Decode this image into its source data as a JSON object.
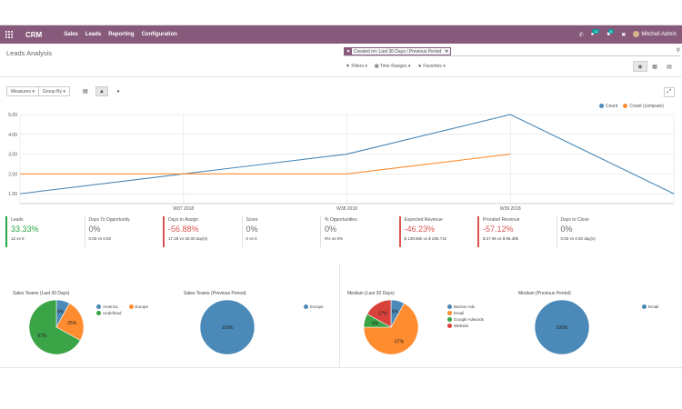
{
  "navbar": {
    "brand": "CRM",
    "menus": [
      "Sales",
      "Leads",
      "Reporting",
      "Configuration"
    ],
    "messages_badge": "11",
    "activities_badge": "6",
    "user": "Mitchell Admin",
    "color": "#875a7b"
  },
  "control_panel": {
    "title": "Leads Analysis",
    "facet": "Created on: Last 30 Days / Previous Period",
    "filters_label": "Filters",
    "time_ranges_label": "Time Ranges",
    "favorites_label": "Favorites"
  },
  "graph_toolbar": {
    "measures_label": "Measures",
    "group_by_label": "Group By"
  },
  "chart_data": {
    "type": "line",
    "categories": [
      "",
      "W37 2018",
      "W38 2018",
      "W39 2018",
      ""
    ],
    "series": [
      {
        "name": "Count",
        "color": "#4a89b8",
        "values": [
          1,
          2,
          3,
          5,
          1
        ]
      },
      {
        "name": "Count (compare)",
        "color": "#ff8c2e",
        "values": [
          2,
          2,
          2,
          3,
          null
        ]
      }
    ],
    "y_ticks": [
      "1.00",
      "2.00",
      "3.00",
      "4.00",
      "5.00"
    ],
    "ylim": [
      0.5,
      5
    ],
    "grid": true,
    "legend": "top-right"
  },
  "kpis": [
    {
      "title": "Leads",
      "value": "33.33%",
      "compare": "12 vs 9",
      "status": "good"
    },
    {
      "title": "Days To Opportunity",
      "value": "0%",
      "compare": "0.00 vs 0.00",
      "status": "neutral"
    },
    {
      "title": "Days to Assign",
      "value": "-56.88%",
      "compare": "17.25 vs 40.00 day(s)",
      "status": "bad"
    },
    {
      "title": "Score",
      "value": "0%",
      "compare": "0 vs 0",
      "status": "neutral"
    },
    {
      "title": "% Opportunities",
      "value": "0%",
      "compare": "0% vs 0%",
      "status": "neutral"
    },
    {
      "title": "Expected Revenue",
      "value": "-46.23%",
      "compare": "$ 139.66k vs $ 259.71k",
      "status": "bad"
    },
    {
      "title": "Prorated Revenue",
      "value": "-57.12%",
      "compare": "$ 37.9k vs $ 88.38k",
      "status": "bad"
    },
    {
      "title": "Days to Close",
      "value": "0%",
      "compare": "0.00 vs 0.00 day(s)",
      "status": "neutral"
    }
  ],
  "pies": [
    {
      "title": "Sales Teams (Last 30 Days)",
      "slices": [
        {
          "label": "America",
          "value": 8,
          "text": "8%",
          "color": "#4a89b8"
        },
        {
          "label": "Europe",
          "value": 25,
          "text": "25%",
          "color": "#ff8c2e"
        },
        {
          "label": "Undefined",
          "value": 67,
          "text": "67%",
          "color": "#3aa447"
        }
      ]
    },
    {
      "title": "Sales Teams (Previous Period)",
      "slices": [
        {
          "label": "Europe",
          "value": 100,
          "text": "100%",
          "color": "#4a89b8"
        }
      ]
    },
    {
      "title": "Medium (Last 30 Days)",
      "slices": [
        {
          "label": "Banner Ads",
          "value": 8,
          "text": "8%",
          "color": "#4a89b8"
        },
        {
          "label": "Email",
          "value": 67,
          "text": "67%",
          "color": "#ff8c2e"
        },
        {
          "label": "Google Adwords",
          "value": 8,
          "text": "8%",
          "color": "#3aa447"
        },
        {
          "label": "Website",
          "value": 17,
          "text": "17%",
          "color": "#d9423a"
        }
      ]
    },
    {
      "title": "Medium (Previous Period)",
      "slices": [
        {
          "label": "Email",
          "value": 100,
          "text": "100%",
          "color": "#4a89b8"
        }
      ]
    }
  ]
}
